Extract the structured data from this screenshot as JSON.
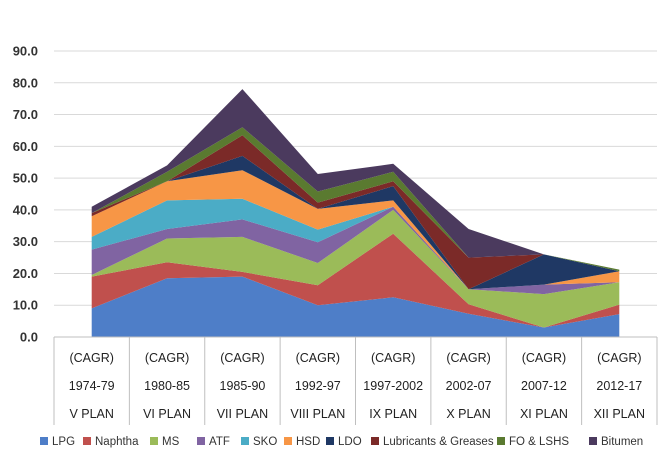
{
  "chart_data": {
    "type": "area",
    "stacked": true,
    "categories": [
      [
        "(CAGR)",
        "1974-79",
        "V PLAN"
      ],
      [
        "(CAGR)",
        "1980-85",
        "VI PLAN"
      ],
      [
        "(CAGR)",
        "1985-90",
        "VII PLAN"
      ],
      [
        "(CAGR)",
        "1992-97",
        "VIII PLAN"
      ],
      [
        "(CAGR)",
        "1997-2002",
        "IX PLAN"
      ],
      [
        "(CAGR)",
        "2002-07",
        "X PLAN"
      ],
      [
        "(CAGR)",
        "2007-12",
        "XI PLAN"
      ],
      [
        "(CAGR)",
        "2012-17",
        "XII PLAN"
      ]
    ],
    "ylim": [
      0,
      90
    ],
    "yticks": [
      "0.0",
      "10.0",
      "20.0",
      "30.0",
      "40.0",
      "50.0",
      "60.0",
      "70.0",
      "80.0",
      "90.0"
    ],
    "grid": "horizontal",
    "legend_position": "bottom",
    "series": [
      {
        "name": "LPG",
        "color": "#4e7ec8",
        "values": [
          9.0,
          18.5,
          19.0,
          10.0,
          12.5,
          7.3,
          3.0,
          7.2
        ]
      },
      {
        "name": "Naphtha",
        "color": "#c0504d",
        "values": [
          10.0,
          5.0,
          1.5,
          6.3,
          20.0,
          3.0,
          0.0,
          3.0
        ]
      },
      {
        "name": "MS",
        "color": "#9bbb59",
        "values": [
          0.5,
          7.5,
          11.0,
          7.0,
          7.5,
          4.7,
          10.5,
          7.0
        ]
      },
      {
        "name": "ATF",
        "color": "#8064a2",
        "values": [
          8.0,
          3.0,
          5.5,
          6.5,
          1.0,
          0.0,
          3.0,
          0.0
        ]
      },
      {
        "name": "SKO",
        "color": "#4bacc6",
        "values": [
          4.0,
          9.0,
          6.5,
          4.0,
          0.0,
          0.0,
          0.0,
          0.0
        ]
      },
      {
        "name": "HSD",
        "color": "#f79646",
        "values": [
          6.5,
          6.0,
          9.0,
          6.5,
          2.0,
          0.0,
          0.0,
          3.5
        ]
      },
      {
        "name": "LDO",
        "color": "#1f3864",
        "values": [
          0.0,
          0.0,
          4.5,
          0.0,
          4.5,
          0.0,
          9.5,
          0.0
        ]
      },
      {
        "name": "Lubricants & Greases",
        "color": "#7b2a28",
        "values": [
          1.0,
          0.0,
          6.5,
          2.0,
          1.5,
          10.0,
          0.0,
          0.0
        ]
      },
      {
        "name": "FO & LSHS",
        "color": "#5a7a30",
        "values": [
          0.0,
          3.0,
          2.5,
          3.5,
          3.0,
          0.0,
          0.0,
          0.5
        ]
      },
      {
        "name": "Bitumen",
        "color": "#4b3a5e",
        "values": [
          2.0,
          2.0,
          12.0,
          5.5,
          2.5,
          9.0,
          0.0,
          0.0
        ]
      }
    ]
  }
}
